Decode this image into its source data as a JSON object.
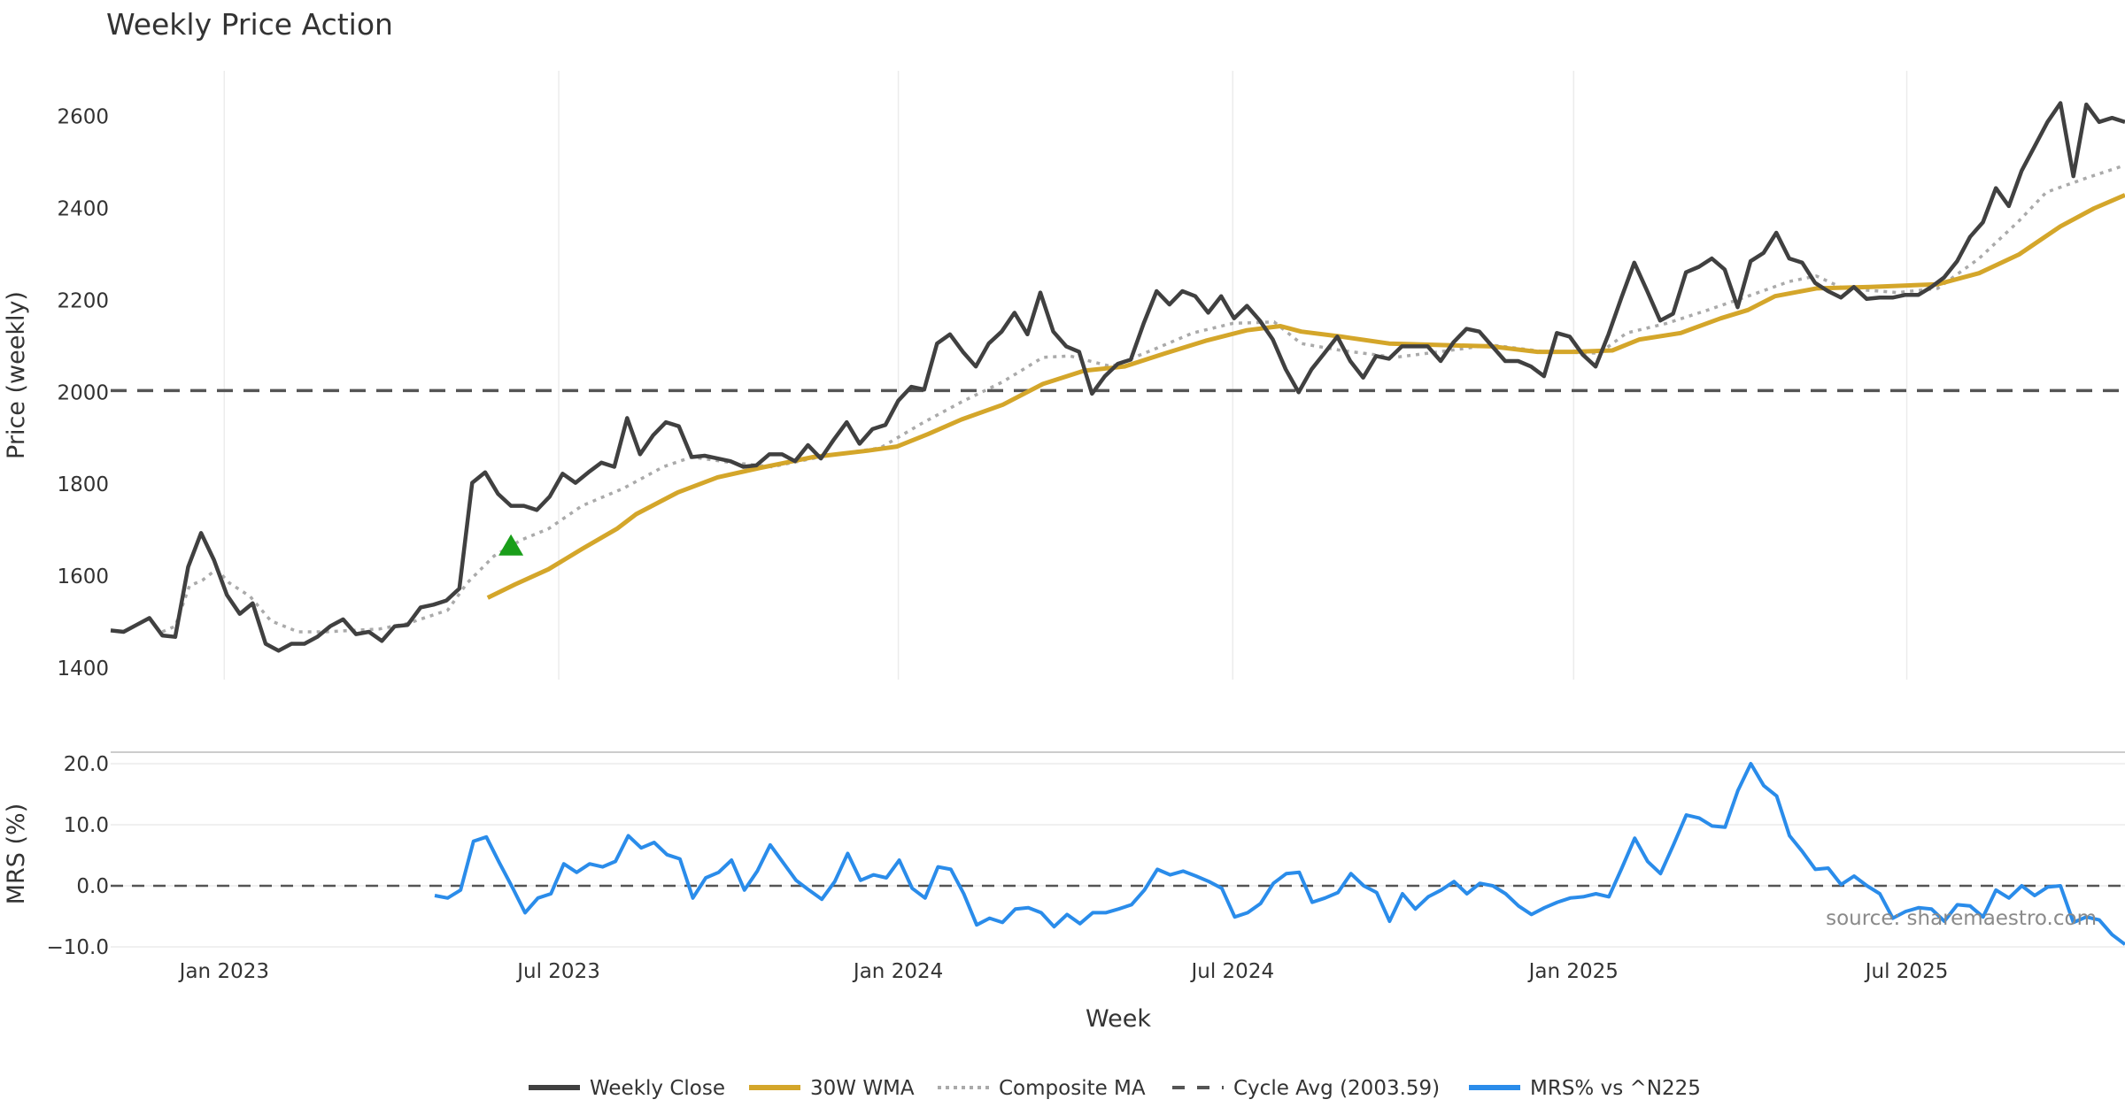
{
  "chart_data": [
    {
      "type": "line",
      "title": "Weekly Price Action",
      "xlabel": "Week",
      "ylabel": "Price (weekly)",
      "ylim": [
        1370,
        2700
      ],
      "yticks": [
        1400,
        1600,
        1800,
        2000,
        2200,
        2400,
        2600
      ],
      "x_range_weeks": [
        0,
        156
      ],
      "xticks": [
        {
          "label": "Jan 2023",
          "week": 8.8
        },
        {
          "label": "Jul 2023",
          "week": 34.7
        },
        {
          "label": "Jan 2024",
          "week": 61.0
        },
        {
          "label": "Jul 2024",
          "week": 86.9
        },
        {
          "label": "Jan 2025",
          "week": 113.3
        },
        {
          "label": "Jul 2025",
          "week": 139.1
        }
      ],
      "series": [
        {
          "name": "Weekly Close",
          "color": "#404040",
          "start_week": 0,
          "end_week": 156,
          "values": [
            1482,
            1479,
            1494,
            1509,
            1471,
            1468,
            1620,
            1694,
            1635,
            1559,
            1518,
            1541,
            1453,
            1438,
            1453,
            1453,
            1468,
            1491,
            1506,
            1474,
            1479,
            1459,
            1491,
            1494,
            1532,
            1538,
            1547,
            1573,
            1803,
            1826,
            1779,
            1753,
            1753,
            1744,
            1773,
            1823,
            1803,
            1826,
            1847,
            1838,
            1944,
            1865,
            1906,
            1935,
            1926,
            1859,
            1862,
            1856,
            1850,
            1838,
            1841,
            1865,
            1865,
            1850,
            1885,
            1856,
            1897,
            1935,
            1888,
            1920,
            1929,
            1982,
            2012,
            2006,
            2106,
            2126,
            2088,
            2056,
            2106,
            2132,
            2173,
            2126,
            2217,
            2132,
            2100,
            2088,
            1997,
            2035,
            2062,
            2071,
            2150,
            2220,
            2191,
            2220,
            2209,
            2173,
            2209,
            2161,
            2188,
            2156,
            2115,
            2050,
            2000,
            2050,
            2085,
            2121,
            2068,
            2032,
            2079,
            2073,
            2100,
            2100,
            2100,
            2068,
            2109,
            2138,
            2132,
            2100,
            2068,
            2068,
            2056,
            2035,
            2129,
            2121,
            2082,
            2056,
            2126,
            2206,
            2282,
            2220,
            2156,
            2171,
            2261,
            2273,
            2291,
            2267,
            2185,
            2285,
            2303,
            2347,
            2291,
            2282,
            2238,
            2220,
            2206,
            2229,
            2203,
            2206,
            2206,
            2212,
            2212,
            2229,
            2250,
            2285,
            2338,
            2370,
            2444,
            2405,
            2482,
            2535,
            2588,
            2629,
            2470,
            2626,
            2588,
            2597,
            2588
          ]
        },
        {
          "name": "30W WMA",
          "color": "#d4a62a",
          "points": [
            [
              29.2,
              1553
            ],
            [
              31.3,
              1582
            ],
            [
              33.9,
              1615
            ],
            [
              36.5,
              1659
            ],
            [
              39.2,
              1703
            ],
            [
              40.7,
              1735
            ],
            [
              43.9,
              1782
            ],
            [
              47.0,
              1815
            ],
            [
              50.2,
              1835
            ],
            [
              54.4,
              1859
            ],
            [
              58.6,
              1873
            ],
            [
              60.9,
              1882
            ],
            [
              63.3,
              1909
            ],
            [
              65.9,
              1941
            ],
            [
              69.1,
              1973
            ],
            [
              72.2,
              2018
            ],
            [
              75.4,
              2047
            ],
            [
              78.5,
              2056
            ],
            [
              81.7,
              2085
            ],
            [
              84.8,
              2112
            ],
            [
              88.0,
              2135
            ],
            [
              90.6,
              2144
            ],
            [
              92.2,
              2132
            ],
            [
              95.3,
              2121
            ],
            [
              99.0,
              2106
            ],
            [
              102.7,
              2103
            ],
            [
              106.9,
              2100
            ],
            [
              110.5,
              2088
            ],
            [
              113.2,
              2088
            ],
            [
              116.3,
              2091
            ],
            [
              118.4,
              2115
            ],
            [
              121.6,
              2129
            ],
            [
              124.7,
              2161
            ],
            [
              126.8,
              2179
            ],
            [
              128.9,
              2209
            ],
            [
              132.1,
              2226
            ],
            [
              136.3,
              2229
            ],
            [
              141.5,
              2235
            ],
            [
              144.7,
              2259
            ],
            [
              147.8,
              2300
            ],
            [
              151.0,
              2361
            ],
            [
              153.6,
              2400
            ],
            [
              156,
              2429
            ]
          ]
        },
        {
          "name": "Composite MA",
          "color": "#aaaaaa",
          "points": [
            [
              4.0,
              1479
            ],
            [
              5.0,
              1491
            ],
            [
              6.1,
              1579
            ],
            [
              7.1,
              1591
            ],
            [
              8.2,
              1615
            ],
            [
              9.2,
              1585
            ],
            [
              10.8,
              1556
            ],
            [
              12.4,
              1503
            ],
            [
              14.5,
              1479
            ],
            [
              16.6,
              1479
            ],
            [
              18.7,
              1482
            ],
            [
              20.8,
              1485
            ],
            [
              23.0,
              1497
            ],
            [
              26.1,
              1526
            ],
            [
              27.6,
              1585
            ],
            [
              29.7,
              1644
            ],
            [
              31.8,
              1679
            ],
            [
              33.9,
              1703
            ],
            [
              36.5,
              1753
            ],
            [
              39.7,
              1791
            ],
            [
              42.8,
              1838
            ],
            [
              45.0,
              1859
            ],
            [
              48.1,
              1847
            ],
            [
              51.2,
              1838
            ],
            [
              55.4,
              1862
            ],
            [
              59.6,
              1879
            ],
            [
              62.8,
              1932
            ],
            [
              65.9,
              1979
            ],
            [
              69.1,
              2023
            ],
            [
              72.2,
              2076
            ],
            [
              74.3,
              2079
            ],
            [
              77.5,
              2056
            ],
            [
              80.6,
              2091
            ],
            [
              83.8,
              2129
            ],
            [
              86.9,
              2150
            ],
            [
              90.1,
              2153
            ],
            [
              92.2,
              2106
            ],
            [
              95.3,
              2091
            ],
            [
              99.5,
              2076
            ],
            [
              103.7,
              2091
            ],
            [
              106.9,
              2103
            ],
            [
              111.1,
              2088
            ],
            [
              115.3,
              2085
            ],
            [
              117.4,
              2129
            ],
            [
              120.5,
              2150
            ],
            [
              123.7,
              2179
            ],
            [
              126.8,
              2209
            ],
            [
              130.0,
              2241
            ],
            [
              132.1,
              2253
            ],
            [
              134.2,
              2226
            ],
            [
              138.4,
              2217
            ],
            [
              141.5,
              2226
            ],
            [
              144.7,
              2291
            ],
            [
              147.8,
              2373
            ],
            [
              149.9,
              2435
            ],
            [
              153.1,
              2467
            ],
            [
              156,
              2494
            ]
          ]
        },
        {
          "name": "Cycle Avg (2003.59)",
          "color": "#555555",
          "value": 2003.59
        }
      ],
      "annotations": [
        {
          "type": "buy-signal-triangle",
          "week": 31,
          "value": 1668,
          "color": "#1a9e1a"
        }
      ]
    },
    {
      "type": "line",
      "ylabel": "MRS (%)",
      "ylim": [
        -10.5,
        21.5
      ],
      "yticks": [
        {
          "v": 20,
          "label": "20.0"
        },
        {
          "v": 10,
          "label": "10.0"
        },
        {
          "v": 0,
          "label": "0.0"
        },
        {
          "v": -10,
          "label": "−10.0"
        }
      ],
      "zero_line": 0,
      "series": [
        {
          "name": "MRS% vs ^N225",
          "color": "#2a8cea",
          "start_week": 25.1,
          "end_week": 156,
          "values": [
            -1.6,
            -2.0,
            -0.7,
            7.3,
            8.0,
            3.8,
            -0.2,
            -4.4,
            -2.0,
            -1.3,
            3.6,
            2.2,
            3.6,
            3.1,
            4.0,
            8.2,
            6.2,
            7.1,
            5.1,
            4.4,
            -2.0,
            1.3,
            2.2,
            4.2,
            -0.7,
            2.4,
            6.7,
            3.8,
            0.9,
            -0.7,
            -2.2,
            0.7,
            5.3,
            0.9,
            1.8,
            1.3,
            4.2,
            -0.4,
            -2.0,
            3.1,
            2.7,
            -1.3,
            -6.4,
            -5.3,
            -6.0,
            -3.8,
            -3.6,
            -4.4,
            -6.7,
            -4.7,
            -6.2,
            -4.4,
            -4.4,
            -3.8,
            -3.1,
            -0.7,
            2.7,
            1.8,
            2.4,
            1.6,
            0.7,
            -0.4,
            -5.1,
            -4.4,
            -2.9,
            0.4,
            2.0,
            2.2,
            -2.7,
            -2.0,
            -1.1,
            2.0,
            0,
            -1.1,
            -5.8,
            -1.3,
            -3.8,
            -1.8,
            -0.7,
            0.7,
            -1.3,
            0.4,
            0,
            -1.3,
            -3.3,
            -4.7,
            -3.6,
            -2.7,
            -2.0,
            -1.8,
            -1.3,
            -1.8,
            2.9,
            7.8,
            4.0,
            2.0,
            6.7,
            11.6,
            11.1,
            9.8,
            9.6,
            15.6,
            20.0,
            16.4,
            14.7,
            8.2,
            5.6,
            2.7,
            2.9,
            0.2,
            1.6,
            0,
            -1.3,
            -5.3,
            -4.2,
            -3.6,
            -3.8,
            -5.8,
            -3.1,
            -3.3,
            -5.1,
            -0.7,
            -2.0,
            0,
            -1.6,
            -0.2,
            0,
            -6.0,
            -5.1,
            -5.6,
            -8.0,
            -9.6
          ]
        }
      ]
    }
  ],
  "legend": {
    "placement": "bottom-center",
    "items": [
      {
        "label": "Weekly Close",
        "color": "#404040",
        "style": "solid"
      },
      {
        "label": "30W WMA",
        "color": "#d4a62a",
        "style": "solid"
      },
      {
        "label": "Composite MA",
        "color": "#aaaaaa",
        "style": "dotted"
      },
      {
        "label": "Cycle Avg (2003.59)",
        "color": "#555555",
        "style": "dashed"
      },
      {
        "label": "MRS% vs ^N225",
        "color": "#2a8cea",
        "style": "solid"
      }
    ]
  },
  "watermark": "source: sharemaestro.com"
}
